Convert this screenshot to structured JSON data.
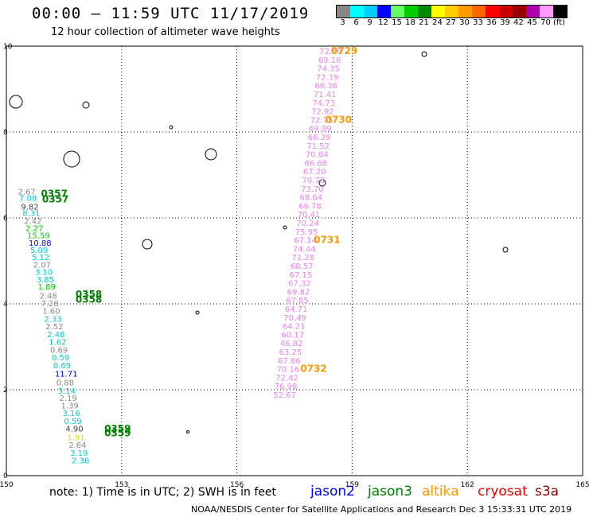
{
  "header": {
    "title": "00:00 – 11:59 UTC 11/17/2019",
    "subtitle": "12 hour collection of altimeter wave heights"
  },
  "color_scale": {
    "labels": [
      "3",
      "6",
      "9",
      "12",
      "15",
      "18",
      "21",
      "24",
      "27",
      "30",
      "33",
      "36",
      "39",
      "42",
      "45",
      "70",
      "(ft)"
    ],
    "colors": [
      "#888888",
      "#00ffff",
      "#00ccff",
      "#0000ff",
      "#66ff66",
      "#00cc00",
      "#008800",
      "#ffff00",
      "#ffcc00",
      "#ff9900",
      "#ff6600",
      "#ff0000",
      "#cc0000",
      "#990000",
      "#aa00aa",
      "#ff99ff",
      "#000000"
    ]
  },
  "colors": {
    "jason2": "#0000ff",
    "jason3": "#008000",
    "altika": "#ff9900",
    "cryosat": "#ff0000",
    "s3a": "#8b0000",
    "gridline": "#000000"
  },
  "axes": {
    "x_ticks": [
      "150",
      "153",
      "156",
      "159",
      "162",
      "165"
    ],
    "y_ticks": [
      "0",
      "2",
      "4",
      "6",
      "8",
      "10"
    ],
    "xlim": [
      150,
      165
    ],
    "ylim": [
      0,
      10
    ]
  },
  "pink_track": {
    "color": "#ee82ee",
    "points": [
      {
        "lon": 158.2,
        "lat": 9.87,
        "v": "72.69"
      },
      {
        "lon": 158.17,
        "lat": 9.67,
        "v": "69.16"
      },
      {
        "lon": 158.14,
        "lat": 9.47,
        "v": "74.35"
      },
      {
        "lon": 158.11,
        "lat": 9.27,
        "v": "72.19"
      },
      {
        "lon": 158.08,
        "lat": 9.07,
        "v": "66.36"
      },
      {
        "lon": 158.05,
        "lat": 8.87,
        "v": "71.41"
      },
      {
        "lon": 158.02,
        "lat": 8.67,
        "v": "74.73"
      },
      {
        "lon": 157.99,
        "lat": 8.47,
        "v": "72.92"
      },
      {
        "lon": 157.96,
        "lat": 8.27,
        "v": "72.75"
      },
      {
        "lon": 157.93,
        "lat": 8.07,
        "v": "69.99"
      },
      {
        "lon": 157.9,
        "lat": 7.87,
        "v": "66.39"
      },
      {
        "lon": 157.87,
        "lat": 7.67,
        "v": "71.52"
      },
      {
        "lon": 157.84,
        "lat": 7.47,
        "v": "70.84"
      },
      {
        "lon": 157.81,
        "lat": 7.27,
        "v": "66.68"
      },
      {
        "lon": 157.78,
        "lat": 7.07,
        "v": "67.20"
      },
      {
        "lon": 157.75,
        "lat": 6.87,
        "v": "70.73"
      },
      {
        "lon": 157.72,
        "lat": 6.67,
        "v": "73.70"
      },
      {
        "lon": 157.69,
        "lat": 6.47,
        "v": "68.64"
      },
      {
        "lon": 157.66,
        "lat": 6.27,
        "v": "66.78"
      },
      {
        "lon": 157.63,
        "lat": 6.07,
        "v": "70.41"
      },
      {
        "lon": 157.6,
        "lat": 5.87,
        "v": "70.24"
      },
      {
        "lon": 157.57,
        "lat": 5.67,
        "v": "75.95"
      },
      {
        "lon": 157.54,
        "lat": 5.47,
        "v": "67.14"
      },
      {
        "lon": 157.51,
        "lat": 5.27,
        "v": "74.44"
      },
      {
        "lon": 157.48,
        "lat": 5.07,
        "v": "71.28"
      },
      {
        "lon": 157.45,
        "lat": 4.87,
        "v": "68.57"
      },
      {
        "lon": 157.42,
        "lat": 4.67,
        "v": "67.15"
      },
      {
        "lon": 157.39,
        "lat": 4.47,
        "v": "67.32"
      },
      {
        "lon": 157.36,
        "lat": 4.27,
        "v": "69.82"
      },
      {
        "lon": 157.33,
        "lat": 4.07,
        "v": "67.85"
      },
      {
        "lon": 157.3,
        "lat": 3.87,
        "v": "64.71"
      },
      {
        "lon": 157.27,
        "lat": 3.67,
        "v": "70.49"
      },
      {
        "lon": 157.24,
        "lat": 3.47,
        "v": "64.21"
      },
      {
        "lon": 157.21,
        "lat": 3.27,
        "v": "60.17"
      },
      {
        "lon": 157.18,
        "lat": 3.07,
        "v": "46.82"
      },
      {
        "lon": 157.15,
        "lat": 2.87,
        "v": "63.25"
      },
      {
        "lon": 157.12,
        "lat": 2.67,
        "v": "67.86"
      },
      {
        "lon": 157.09,
        "lat": 2.47,
        "v": "70.16"
      },
      {
        "lon": 157.06,
        "lat": 2.27,
        "v": "72.42"
      },
      {
        "lon": 157.03,
        "lat": 2.07,
        "v": "76.98"
      },
      {
        "lon": 157.0,
        "lat": 1.87,
        "v": "52.67"
      }
    ],
    "time_labels": [
      {
        "t": "0729",
        "lon": 158.45,
        "lat": 9.87
      },
      {
        "t": "0730",
        "lon": 158.3,
        "lat": 8.27
      },
      {
        "t": "0731",
        "lon": 158.0,
        "lat": 5.47
      },
      {
        "t": "0732",
        "lon": 157.65,
        "lat": 2.47
      }
    ]
  },
  "left_track": {
    "values": [
      {
        "lon": 150.3,
        "lat": 6.6,
        "v": "2.67",
        "c": "#888888"
      },
      {
        "lon": 150.33,
        "lat": 6.45,
        "v": "7.08",
        "c": "#00cccc"
      },
      {
        "lon": 150.38,
        "lat": 6.25,
        "v": "9.82",
        "c": "#444444"
      },
      {
        "lon": 150.42,
        "lat": 6.1,
        "v": "8.31",
        "c": "#00cccc"
      },
      {
        "lon": 150.46,
        "lat": 5.92,
        "v": "2.42",
        "c": "#888888"
      },
      {
        "lon": 150.5,
        "lat": 5.75,
        "v": "2.27",
        "c": "#00cc00"
      },
      {
        "lon": 150.54,
        "lat": 5.58,
        "v": "15.59",
        "c": "#00cc00"
      },
      {
        "lon": 150.58,
        "lat": 5.41,
        "v": "10.88",
        "c": "#0000ff"
      },
      {
        "lon": 150.62,
        "lat": 5.24,
        "v": "5.09",
        "c": "#00cccc"
      },
      {
        "lon": 150.66,
        "lat": 5.07,
        "v": "5.12",
        "c": "#00cccc"
      },
      {
        "lon": 150.7,
        "lat": 4.9,
        "v": "2.07",
        "c": "#888888"
      },
      {
        "lon": 150.74,
        "lat": 4.73,
        "v": "3.10",
        "c": "#00cccc"
      },
      {
        "lon": 150.78,
        "lat": 4.56,
        "v": "3.85",
        "c": "#00cccc"
      },
      {
        "lon": 150.82,
        "lat": 4.39,
        "v": "1.89",
        "c": "#00cc00"
      },
      {
        "lon": 150.86,
        "lat": 4.18,
        "v": "2.48",
        "c": "#888888"
      },
      {
        "lon": 150.9,
        "lat": 4.0,
        "v": "7.28",
        "c": "#888888"
      },
      {
        "lon": 150.94,
        "lat": 3.82,
        "v": "1.60",
        "c": "#888888"
      },
      {
        "lon": 150.98,
        "lat": 3.64,
        "v": "2.33",
        "c": "#00cccc"
      },
      {
        "lon": 151.02,
        "lat": 3.46,
        "v": "2.52",
        "c": "#888888"
      },
      {
        "lon": 151.06,
        "lat": 3.28,
        "v": "2.48",
        "c": "#00cccc"
      },
      {
        "lon": 151.1,
        "lat": 3.1,
        "v": "1.62",
        "c": "#00cccc"
      },
      {
        "lon": 151.14,
        "lat": 2.92,
        "v": "0.69",
        "c": "#888888"
      },
      {
        "lon": 151.18,
        "lat": 2.74,
        "v": "0.59",
        "c": "#00cccc"
      },
      {
        "lon": 151.22,
        "lat": 2.56,
        "v": "0.69",
        "c": "#00cccc"
      },
      {
        "lon": 151.26,
        "lat": 2.36,
        "v": "11.71",
        "c": "#0000ff"
      },
      {
        "lon": 151.3,
        "lat": 2.16,
        "v": "0.88",
        "c": "#888888"
      },
      {
        "lon": 151.34,
        "lat": 1.96,
        "v": "3.14",
        "c": "#00cccc"
      },
      {
        "lon": 151.38,
        "lat": 1.8,
        "v": "2.19",
        "c": "#888888"
      },
      {
        "lon": 151.42,
        "lat": 1.62,
        "v": "1.39",
        "c": "#888888"
      },
      {
        "lon": 151.46,
        "lat": 1.44,
        "v": "3.16",
        "c": "#00cccc"
      },
      {
        "lon": 151.5,
        "lat": 1.26,
        "v": "0.59",
        "c": "#00cccc"
      },
      {
        "lon": 151.54,
        "lat": 1.08,
        "v": "4.90",
        "c": "#444444"
      },
      {
        "lon": 151.58,
        "lat": 0.88,
        "v": "1.91",
        "c": "#dddd00"
      },
      {
        "lon": 151.62,
        "lat": 0.7,
        "v": "2.64",
        "c": "#888888"
      },
      {
        "lon": 151.66,
        "lat": 0.52,
        "v": "3.19",
        "c": "#00cccc"
      },
      {
        "lon": 151.7,
        "lat": 0.34,
        "v": "2.36",
        "c": "#00cccc"
      }
    ],
    "time_labels": [
      {
        "t": "0357",
        "lon": 150.9,
        "lat": 6.55
      },
      {
        "t": "0357",
        "lon": 150.93,
        "lat": 6.42
      },
      {
        "t": "0358",
        "lon": 151.8,
        "lat": 4.2
      },
      {
        "t": "0358",
        "lon": 151.8,
        "lat": 4.08
      },
      {
        "t": "0359",
        "lon": 152.55,
        "lat": 1.07
      },
      {
        "t": "0359",
        "lon": 152.55,
        "lat": 0.97
      }
    ]
  },
  "footer": {
    "note": "note:  1) Time is in UTC;  2) SWH is in feet",
    "satellites": [
      {
        "name": "jason2",
        "color": "#0000ff"
      },
      {
        "name": "jason3",
        "color": "#008000"
      },
      {
        "name": "altika",
        "color": "#ff9900"
      },
      {
        "name": "cryosat",
        "color": "#ff0000"
      },
      {
        "name": "s3a",
        "color": "#8b0000"
      }
    ],
    "credit": "NOAA/NESDIS Center for Satellite Applications and Research    Dec  3 15:33:31 UTC 2019"
  }
}
